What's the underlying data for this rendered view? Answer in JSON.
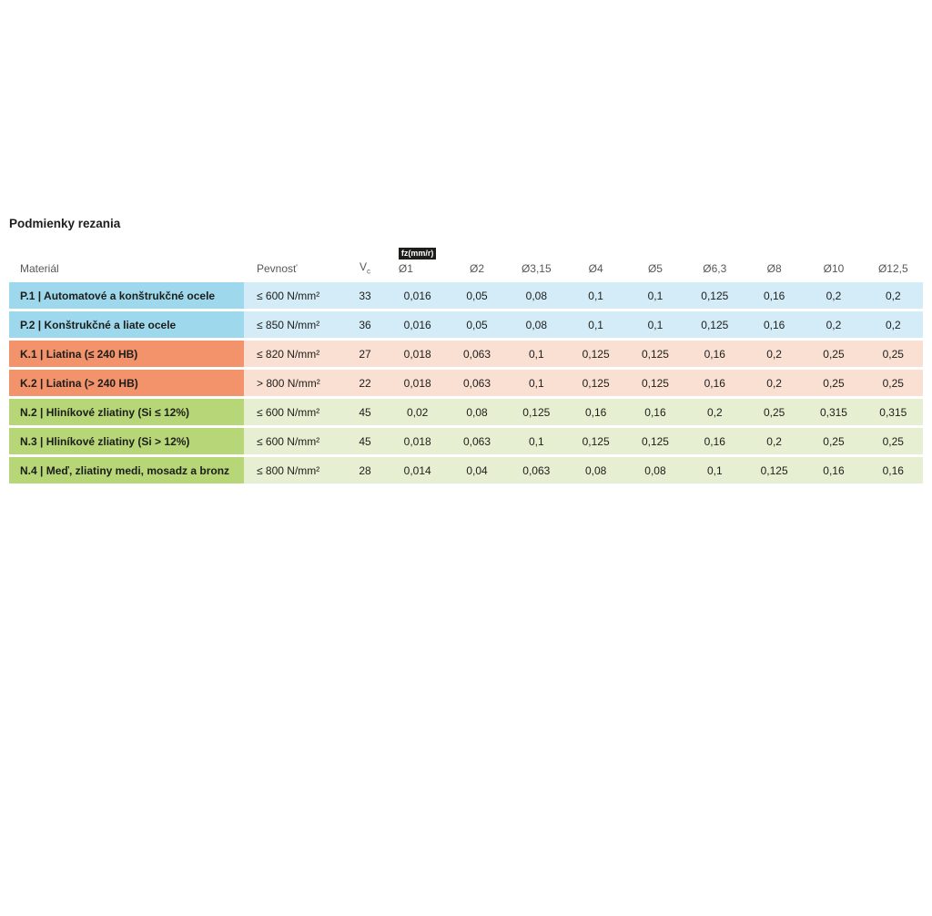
{
  "page": {
    "title": "Podmienky rezania"
  },
  "table": {
    "badge": "fz(mm/r)",
    "headers": {
      "material": "Materiál",
      "strength": "Pevnosť",
      "vc_main": "V",
      "vc_sub": "c",
      "diameters": [
        "Ø1",
        "Ø2",
        "Ø3,15",
        "Ø4",
        "Ø5",
        "Ø6,3",
        "Ø8",
        "Ø10",
        "Ø12,5"
      ]
    },
    "rows": [
      {
        "group": "blue",
        "material": "P.1 | Automatové a konštrukčné ocele",
        "strength": "≤ 600 N/mm²",
        "vc": "33",
        "values": [
          "0,016",
          "0,05",
          "0,08",
          "0,1",
          "0,1",
          "0,125",
          "0,16",
          "0,2",
          "0,2"
        ]
      },
      {
        "group": "blue",
        "material": "P.2 | Konštrukčné a liate ocele",
        "strength": "≤ 850 N/mm²",
        "vc": "36",
        "values": [
          "0,016",
          "0,05",
          "0,08",
          "0,1",
          "0,1",
          "0,125",
          "0,16",
          "0,2",
          "0,2"
        ]
      },
      {
        "group": "orange",
        "material": "K.1 | Liatina (≤ 240 HB)",
        "strength": "≤ 820 N/mm²",
        "vc": "27",
        "values": [
          "0,018",
          "0,063",
          "0,1",
          "0,125",
          "0,125",
          "0,16",
          "0,2",
          "0,25",
          "0,25"
        ]
      },
      {
        "group": "orange",
        "material": "K.2 | Liatina (> 240 HB)",
        "strength": "> 800 N/mm²",
        "vc": "22",
        "values": [
          "0,018",
          "0,063",
          "0,1",
          "0,125",
          "0,125",
          "0,16",
          "0,2",
          "0,25",
          "0,25"
        ]
      },
      {
        "group": "green",
        "material": "N.2 | Hliníkové zliatiny (Si ≤ 12%)",
        "strength": "≤ 600 N/mm²",
        "vc": "45",
        "values": [
          "0,02",
          "0,08",
          "0,125",
          "0,16",
          "0,16",
          "0,2",
          "0,25",
          "0,315",
          "0,315"
        ]
      },
      {
        "group": "green",
        "material": "N.3 | Hliníkové zliatiny (Si > 12%)",
        "strength": "≤ 600 N/mm²",
        "vc": "45",
        "values": [
          "0,018",
          "0,063",
          "0,1",
          "0,125",
          "0,125",
          "0,16",
          "0,2",
          "0,25",
          "0,25"
        ]
      },
      {
        "group": "green",
        "material": "N.4 | Meď, zliatiny medi, mosadz a bronz",
        "strength": "≤ 800 N/mm²",
        "vc": "28",
        "values": [
          "0,014",
          "0,04",
          "0,063",
          "0,08",
          "0,08",
          "0,1",
          "0,125",
          "0,16",
          "0,16"
        ]
      }
    ],
    "colors": {
      "blue_dark": "#9ed8ec",
      "blue_light": "#d4ecf7",
      "orange_dark": "#f2936c",
      "orange_light": "#fadfd3",
      "green_dark": "#b6d677",
      "green_light": "#e6efd1"
    }
  }
}
